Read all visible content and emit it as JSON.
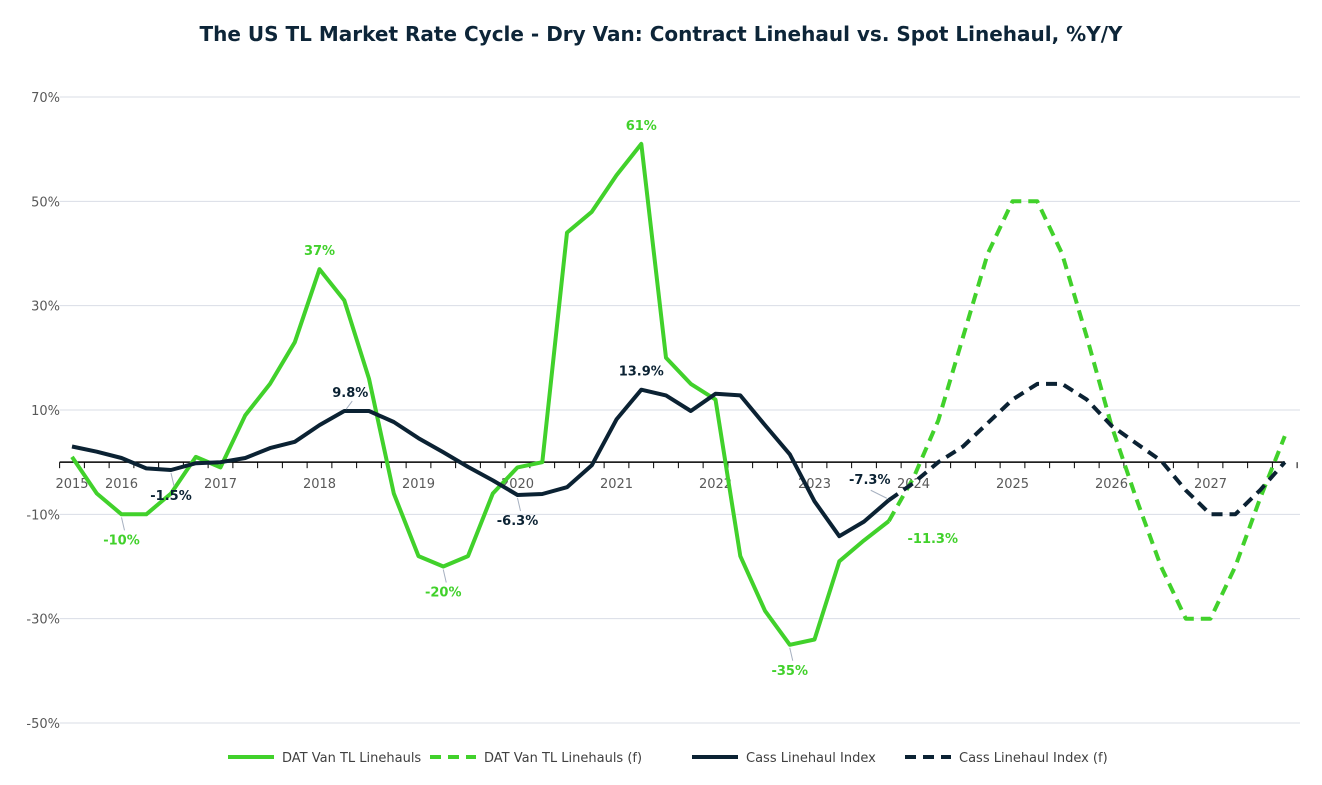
{
  "chart_data": {
    "type": "line",
    "title": "The US TL Market Rate Cycle - Dry Van: Contract Linehaul vs. Spot Linehaul, %Y/Y",
    "xlabel": "",
    "ylabel": "",
    "ylim": [
      -50,
      70
    ],
    "yticks": [
      70,
      50,
      30,
      10,
      -10,
      -30,
      -50
    ],
    "ytick_labels": [
      "70%",
      "50%",
      "30%",
      "10%",
      "-10%",
      "-30%",
      "-50%"
    ],
    "grid": true,
    "legend": "bottom",
    "categories": [
      "2015",
      "",
      "2016",
      "",
      "",
      "",
      "2017",
      "",
      "",
      "",
      "2018",
      "",
      "",
      "",
      "2019",
      "",
      "",
      "",
      "2020",
      "",
      "",
      "",
      "2021",
      "",
      "",
      "",
      "2022",
      "",
      "",
      "",
      "2023",
      "",
      "",
      "",
      "2024",
      "",
      "",
      "",
      "2025",
      "",
      "",
      "",
      "2026",
      "",
      "",
      "",
      "2027",
      "",
      "",
      ""
    ],
    "series": [
      {
        "name": "DAT Van TL Linehauls",
        "color": "#41d12b",
        "style": "solid",
        "values": [
          1,
          -6,
          -10,
          -10,
          -6,
          1,
          -1,
          9,
          15,
          23,
          37,
          31,
          16,
          -6,
          -18,
          -20,
          -18,
          -6,
          -1,
          0,
          44,
          48,
          55,
          61,
          20,
          15,
          12,
          -18,
          -28.5,
          -35,
          -34,
          -19,
          -15,
          -11.3,
          null,
          null,
          null,
          null,
          null,
          null,
          null,
          null,
          null,
          null,
          null,
          null,
          null,
          null,
          null,
          null
        ]
      },
      {
        "name": "DAT Van TL Linehauls (f)",
        "color": "#41d12b",
        "style": "dashed",
        "values": [
          null,
          null,
          null,
          null,
          null,
          null,
          null,
          null,
          null,
          null,
          null,
          null,
          null,
          null,
          null,
          null,
          null,
          null,
          null,
          null,
          null,
          null,
          null,
          null,
          null,
          null,
          null,
          null,
          null,
          null,
          null,
          null,
          null,
          -11.3,
          -3,
          8,
          24,
          40,
          50,
          50,
          40,
          24,
          7,
          -7,
          -20,
          -30,
          -30,
          -20,
          -7,
          5
        ]
      },
      {
        "name": "Cass Linehaul Index",
        "color": "#0b2233",
        "style": "solid",
        "values": [
          3,
          2,
          0.8,
          -1.2,
          -1.5,
          -0.2,
          0,
          0.8,
          2.7,
          3.9,
          7.1,
          9.8,
          9.8,
          7.7,
          4.6,
          1.9,
          -0.9,
          -3.5,
          -6.3,
          -6.1,
          -4.8,
          -0.6,
          8.2,
          13.9,
          12.8,
          9.8,
          13.1,
          12.8,
          7.1,
          1.5,
          -7.5,
          -14.2,
          -11.4,
          -7.3,
          null,
          null,
          null,
          null,
          null,
          null,
          null,
          null,
          null,
          null,
          null,
          null,
          null,
          null,
          null,
          null
        ]
      },
      {
        "name": "Cass Linehaul Index (f)",
        "color": "#0b2233",
        "style": "dashed",
        "values": [
          null,
          null,
          null,
          null,
          null,
          null,
          null,
          null,
          null,
          null,
          null,
          null,
          null,
          null,
          null,
          null,
          null,
          null,
          null,
          null,
          null,
          null,
          null,
          null,
          null,
          null,
          null,
          null,
          null,
          null,
          null,
          null,
          null,
          -7.3,
          -4,
          0,
          3,
          7.5,
          12,
          15,
          15,
          12,
          7,
          3.6,
          0.3,
          -5.4,
          -10,
          -10,
          -5.4,
          0
        ]
      }
    ],
    "data_labels": [
      {
        "series": 0,
        "index": 2,
        "text": "-10%",
        "pos": "below"
      },
      {
        "series": 0,
        "index": 10,
        "text": "37%",
        "pos": "above"
      },
      {
        "series": 0,
        "index": 15,
        "text": "-20%",
        "pos": "below"
      },
      {
        "series": 0,
        "index": 23,
        "text": "61%",
        "pos": "above"
      },
      {
        "series": 0,
        "index": 29,
        "text": "-35%",
        "pos": "below"
      },
      {
        "series": 0,
        "index": 33,
        "text": "-11.3%",
        "pos": "below-right"
      },
      {
        "series": 2,
        "index": 4,
        "text": "-1.5%",
        "pos": "below"
      },
      {
        "series": 2,
        "index": 11,
        "text": "9.8%",
        "pos": "above"
      },
      {
        "series": 2,
        "index": 18,
        "text": "-6.3%",
        "pos": "below"
      },
      {
        "series": 2,
        "index": 23,
        "text": "13.9%",
        "pos": "above"
      },
      {
        "series": 2,
        "index": 33,
        "text": "-7.3%",
        "pos": "above-left"
      }
    ]
  }
}
